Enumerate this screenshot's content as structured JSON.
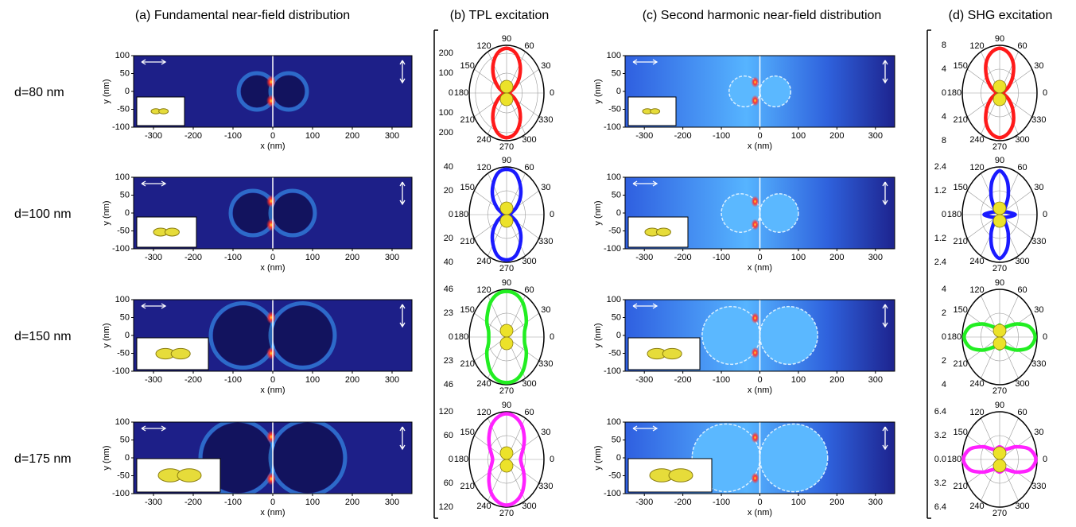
{
  "row_labels": [
    "d=80 nm",
    "d=100 nm",
    "d=150 nm",
    "d=175 nm"
  ],
  "chart_data": [
    {
      "type": "heatmap",
      "title": "(a) Fundamental near-field distribution",
      "xlabel": "x (nm)",
      "ylabel": "y (nm)",
      "xlim": [
        -350,
        350
      ],
      "ylim": [
        -100,
        100
      ],
      "xticks": [
        -300,
        -200,
        -100,
        0,
        100,
        200,
        300
      ],
      "yticks": [
        -100,
        -50,
        0,
        50,
        100
      ]
    },
    {
      "type": "polar",
      "title": "(b) TPL excitation",
      "color": "#ff1a1a",
      "rlim": [
        0,
        240
      ],
      "rticks": [
        0,
        100,
        200
      ],
      "angle_ticks": [
        0,
        30,
        60,
        90,
        120,
        150,
        180,
        210,
        240,
        270,
        300,
        330
      ],
      "theta": [
        0,
        15,
        30,
        45,
        60,
        75,
        90,
        105,
        120,
        135,
        150,
        165,
        180,
        195,
        210,
        225,
        240,
        255,
        270,
        285,
        300,
        315,
        330,
        345
      ],
      "values": [
        10,
        24,
        64,
        118,
        171,
        211,
        225,
        211,
        171,
        118,
        64,
        24,
        10,
        24,
        64,
        118,
        171,
        211,
        225,
        211,
        171,
        118,
        64,
        24
      ]
    },
    {
      "type": "heatmap",
      "title": "(c) Second harmonic near-field distribution",
      "xlabel": "x (nm)",
      "ylabel": "y (nm)",
      "xlim": [
        -350,
        350
      ],
      "ylim": [
        -100,
        100
      ],
      "xticks": [
        -300,
        -200,
        -100,
        0,
        100,
        200,
        300
      ],
      "yticks": [
        -100,
        -50,
        0,
        50,
        100
      ]
    },
    {
      "type": "polar",
      "title": "(d) SHG excitation",
      "color": "#ff1a1a",
      "rlim": [
        0,
        8
      ],
      "rticks": [
        0,
        4,
        8
      ],
      "angle_ticks": [
        0,
        30,
        60,
        90,
        120,
        150,
        180,
        210,
        240,
        270,
        300,
        330
      ],
      "theta": [
        0,
        15,
        30,
        45,
        60,
        75,
        90,
        105,
        120,
        135,
        150,
        165,
        180,
        195,
        210,
        225,
        240,
        255,
        270,
        285,
        300,
        315,
        330,
        345
      ],
      "values": [
        0.5,
        1.0,
        2.3,
        4.0,
        5.8,
        7.0,
        7.5,
        7.0,
        5.8,
        4.0,
        2.3,
        1.0,
        0.5,
        1.0,
        2.3,
        4.0,
        5.8,
        7.0,
        7.5,
        7.0,
        5.8,
        4.0,
        2.3,
        1.0
      ]
    },
    {
      "type": "heatmap",
      "xlabel": "x (nm)",
      "ylabel": "y (nm)",
      "xlim": [
        -350,
        350
      ],
      "ylim": [
        -100,
        100
      ],
      "xticks": [
        -300,
        -200,
        -100,
        0,
        100,
        200,
        300
      ],
      "yticks": [
        -100,
        -50,
        0,
        50,
        100
      ]
    },
    {
      "type": "polar",
      "color": "#1a1aff",
      "rlim": [
        0,
        40
      ],
      "rticks": [
        0,
        20,
        40
      ],
      "angle_ticks": [
        0,
        30,
        60,
        90,
        120,
        150,
        180,
        210,
        240,
        270,
        300,
        330
      ],
      "theta": [
        0,
        15,
        30,
        45,
        60,
        75,
        90,
        105,
        120,
        135,
        150,
        165,
        180,
        195,
        210,
        225,
        240,
        255,
        270,
        285,
        300,
        315,
        330,
        345
      ],
      "values": [
        3,
        5,
        12,
        21,
        29,
        36,
        38,
        36,
        29,
        21,
        12,
        5,
        3,
        5,
        12,
        21,
        29,
        36,
        38,
        36,
        29,
        21,
        12,
        5
      ]
    },
    {
      "type": "heatmap",
      "xlabel": "x (nm)",
      "ylabel": "y (nm)",
      "xlim": [
        -350,
        350
      ],
      "ylim": [
        -100,
        100
      ],
      "xticks": [
        -300,
        -200,
        -100,
        0,
        100,
        200,
        300
      ],
      "yticks": [
        -100,
        -50,
        0,
        50,
        100
      ]
    },
    {
      "type": "polar",
      "color": "#1a1aff",
      "rlim": [
        0,
        2.4
      ],
      "rticks": [
        0,
        1.2,
        2.4
      ],
      "angle_ticks": [
        0,
        30,
        60,
        90,
        120,
        150,
        180,
        210,
        240,
        270,
        300,
        330
      ],
      "theta": [
        0,
        15,
        30,
        45,
        60,
        75,
        90,
        105,
        120,
        135,
        150,
        165,
        180,
        195,
        210,
        225,
        240,
        255,
        270,
        285,
        300,
        315,
        330,
        345
      ],
      "values": [
        1.0,
        0.5,
        0.3,
        0.5,
        1.1,
        1.8,
        2.2,
        1.8,
        1.1,
        0.5,
        0.3,
        0.5,
        1.0,
        0.5,
        0.3,
        0.5,
        1.1,
        1.8,
        2.2,
        1.8,
        1.1,
        0.5,
        0.3,
        0.5
      ]
    },
    {
      "type": "heatmap",
      "xlabel": "x (nm)",
      "ylabel": "y (nm)",
      "xlim": [
        -350,
        350
      ],
      "ylim": [
        -100,
        100
      ],
      "xticks": [
        -300,
        -200,
        -100,
        0,
        100,
        200,
        300
      ],
      "yticks": [
        -100,
        -50,
        0,
        50,
        100
      ]
    },
    {
      "type": "polar",
      "color": "#22ee22",
      "rlim": [
        0,
        46
      ],
      "rticks": [
        0,
        23,
        46
      ],
      "angle_ticks": [
        0,
        30,
        60,
        90,
        120,
        150,
        180,
        210,
        240,
        270,
        300,
        330
      ],
      "theta": [
        0,
        15,
        30,
        45,
        60,
        75,
        90,
        105,
        120,
        135,
        150,
        165,
        180,
        195,
        210,
        225,
        240,
        255,
        270,
        285,
        300,
        315,
        330,
        345
      ],
      "values": [
        22,
        23,
        28,
        33,
        39,
        43,
        44,
        43,
        39,
        33,
        28,
        23,
        22,
        23,
        28,
        33,
        39,
        43,
        44,
        43,
        39,
        33,
        28,
        23
      ]
    },
    {
      "type": "heatmap",
      "xlabel": "x (nm)",
      "ylabel": "y (nm)",
      "xlim": [
        -350,
        350
      ],
      "ylim": [
        -100,
        100
      ],
      "xticks": [
        -300,
        -200,
        -100,
        0,
        100,
        200,
        300
      ],
      "yticks": [
        -100,
        -50,
        0,
        50,
        100
      ]
    },
    {
      "type": "polar",
      "color": "#22ee22",
      "rlim": [
        0,
        4
      ],
      "rticks": [
        0,
        2,
        4
      ],
      "angle_ticks": [
        0,
        30,
        60,
        90,
        120,
        150,
        180,
        210,
        240,
        270,
        300,
        330
      ],
      "theta": [
        0,
        15,
        30,
        45,
        60,
        75,
        90,
        105,
        120,
        135,
        150,
        165,
        180,
        195,
        210,
        225,
        240,
        255,
        270,
        285,
        300,
        315,
        330,
        345
      ],
      "values": [
        3.8,
        3.3,
        2.2,
        1.3,
        0.9,
        0.9,
        1.0,
        0.9,
        0.9,
        1.3,
        2.2,
        3.3,
        3.8,
        3.3,
        2.2,
        1.3,
        0.9,
        0.9,
        1.0,
        0.9,
        0.9,
        1.3,
        2.2,
        3.3
      ]
    },
    {
      "type": "heatmap",
      "xlabel": "x (nm)",
      "ylabel": "y (nm)",
      "xlim": [
        -350,
        350
      ],
      "ylim": [
        -100,
        100
      ],
      "xticks": [
        -300,
        -200,
        -100,
        0,
        100,
        200,
        300
      ],
      "yticks": [
        -100,
        -50,
        0,
        50,
        100
      ]
    },
    {
      "type": "polar",
      "color": "#ff22ff",
      "rlim": [
        0,
        120
      ],
      "rticks": [
        0,
        60,
        120
      ],
      "angle_ticks": [
        0,
        30,
        60,
        90,
        120,
        150,
        180,
        210,
        240,
        270,
        300,
        330
      ],
      "theta": [
        0,
        15,
        30,
        45,
        60,
        75,
        90,
        105,
        120,
        135,
        150,
        165,
        180,
        195,
        210,
        225,
        240,
        255,
        270,
        285,
        300,
        315,
        330,
        345
      ],
      "values": [
        45,
        50,
        63,
        80,
        98,
        110,
        115,
        110,
        98,
        80,
        63,
        50,
        45,
        50,
        63,
        80,
        98,
        110,
        115,
        110,
        98,
        80,
        63,
        50
      ]
    },
    {
      "type": "heatmap",
      "xlabel": "x (nm)",
      "ylabel": "y (nm)",
      "xlim": [
        -350,
        350
      ],
      "ylim": [
        -100,
        100
      ],
      "xticks": [
        -300,
        -200,
        -100,
        0,
        100,
        200,
        300
      ],
      "yticks": [
        -100,
        -50,
        0,
        50,
        100
      ]
    },
    {
      "type": "polar",
      "color": "#ff22ff",
      "rlim": [
        0,
        6.4
      ],
      "rticks": [
        {
          "value": 0,
          "label": "0.0"
        },
        3.2,
        6.4
      ],
      "angle_ticks": [
        0,
        30,
        60,
        90,
        120,
        150,
        180,
        210,
        240,
        270,
        300,
        330
      ],
      "theta": [
        0,
        15,
        30,
        45,
        60,
        75,
        90,
        105,
        120,
        135,
        150,
        165,
        180,
        195,
        210,
        225,
        240,
        255,
        270,
        285,
        300,
        315,
        330,
        345
      ],
      "values": [
        6.2,
        5.3,
        3.4,
        2.0,
        1.5,
        1.6,
        1.7,
        1.6,
        1.5,
        2.0,
        3.4,
        5.3,
        6.2,
        5.3,
        3.4,
        2.0,
        1.5,
        1.6,
        1.7,
        1.6,
        1.5,
        2.0,
        3.4,
        5.3
      ]
    }
  ]
}
